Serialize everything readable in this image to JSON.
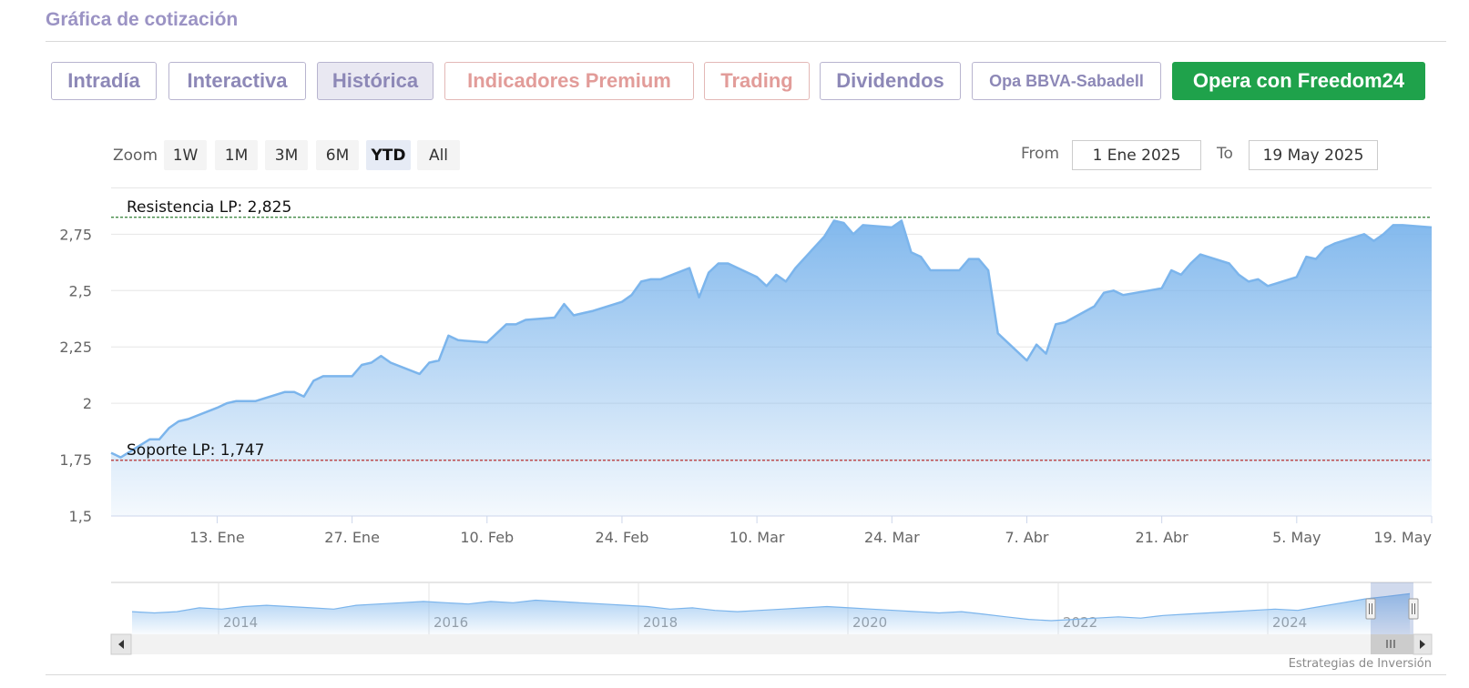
{
  "section_title": "Gráfica de cotización",
  "tabs": [
    {
      "label": "Intradía",
      "style": "normal"
    },
    {
      "label": "Interactiva",
      "style": "normal"
    },
    {
      "label": "Histórica",
      "style": "active"
    },
    {
      "label": "Indicadores Premium",
      "style": "red"
    },
    {
      "label": "Trading",
      "style": "red"
    },
    {
      "label": "Dividendos",
      "style": "normal"
    },
    {
      "label": "Opa BBVA-Sabadell",
      "style": "small"
    },
    {
      "label": "Opera con Freedom24",
      "style": "green"
    }
  ],
  "zoom": {
    "label": "Zoom",
    "buttons": [
      "1W",
      "1M",
      "3M",
      "6M",
      "YTD",
      "All"
    ],
    "selected": "YTD"
  },
  "range": {
    "from_label": "From",
    "from_value": "1 Ene 2025",
    "to_label": "To",
    "to_value": "19 May 2025"
  },
  "credit": "Estrategias de Inversión",
  "colors": {
    "line": "#7cb5ec",
    "fill_top": "#7cb5ec",
    "resistance": "#2e7d32",
    "support": "#b71c1c",
    "green_button": "#1fa24b",
    "tab_text": "#8d88b7",
    "tab_text_red": "#e29c99"
  },
  "chart_data": {
    "type": "area",
    "title": "",
    "xlabel": "",
    "ylabel": "",
    "x_ticks": [
      "13. Ene",
      "27. Ene",
      "10. Feb",
      "24. Feb",
      "10. Mar",
      "24. Mar",
      "7. Abr",
      "21. Abr",
      "5. May",
      "19. May"
    ],
    "y_ticks": [
      "1,5",
      "1,75",
      "2",
      "2,25",
      "2,5",
      "2,75"
    ],
    "y_tick_values": [
      1.5,
      1.75,
      2,
      2.25,
      2.5,
      2.75
    ],
    "ylim": [
      1.5,
      2.82
    ],
    "xlim": [
      "2025-01-02",
      "2025-05-19"
    ],
    "grid": true,
    "legend": "none",
    "reference_lines": [
      {
        "label": "Resistencia LP: 2,825",
        "value": 2.825,
        "style": "dashed"
      },
      {
        "label": "Soporte LP: 1,747",
        "value": 1.747,
        "style": "dashed"
      }
    ],
    "series": [
      {
        "x": [
          "2025-01-02",
          "2025-01-03",
          "2025-01-06",
          "2025-01-07",
          "2025-01-08",
          "2025-01-09",
          "2025-01-10",
          "2025-01-13",
          "2025-01-14",
          "2025-01-15",
          "2025-01-16",
          "2025-01-17",
          "2025-01-20",
          "2025-01-21",
          "2025-01-22",
          "2025-01-23",
          "2025-01-24",
          "2025-01-27",
          "2025-01-28",
          "2025-01-29",
          "2025-01-30",
          "2025-01-31",
          "2025-02-03",
          "2025-02-04",
          "2025-02-05",
          "2025-02-06",
          "2025-02-07",
          "2025-02-10",
          "2025-02-11",
          "2025-02-12",
          "2025-02-13",
          "2025-02-14",
          "2025-02-17",
          "2025-02-18",
          "2025-02-19",
          "2025-02-20",
          "2025-02-21",
          "2025-02-24",
          "2025-02-25",
          "2025-02-26",
          "2025-02-27",
          "2025-02-28",
          "2025-03-03",
          "2025-03-04",
          "2025-03-05",
          "2025-03-06",
          "2025-03-07",
          "2025-03-10",
          "2025-03-11",
          "2025-03-12",
          "2025-03-13",
          "2025-03-14",
          "2025-03-17",
          "2025-03-18",
          "2025-03-19",
          "2025-03-20",
          "2025-03-21",
          "2025-03-24",
          "2025-03-25",
          "2025-03-26",
          "2025-03-27",
          "2025-03-28",
          "2025-03-31",
          "2025-04-01",
          "2025-04-02",
          "2025-04-03",
          "2025-04-04",
          "2025-04-07",
          "2025-04-08",
          "2025-04-09",
          "2025-04-10",
          "2025-04-11",
          "2025-04-14",
          "2025-04-15",
          "2025-04-16",
          "2025-04-17",
          "2025-04-21",
          "2025-04-22",
          "2025-04-23",
          "2025-04-24",
          "2025-04-25",
          "2025-04-28",
          "2025-04-29",
          "2025-04-30",
          "2025-05-01",
          "2025-05-02",
          "2025-05-05",
          "2025-05-06",
          "2025-05-07",
          "2025-05-08",
          "2025-05-09",
          "2025-05-12",
          "2025-05-13",
          "2025-05-14",
          "2025-05-15",
          "2025-05-16",
          "2025-05-19"
        ],
        "values": [
          1.78,
          1.76,
          1.84,
          1.84,
          1.89,
          1.92,
          1.93,
          1.98,
          2.0,
          2.01,
          2.01,
          2.01,
          2.05,
          2.05,
          2.03,
          2.1,
          2.12,
          2.12,
          2.17,
          2.18,
          2.21,
          2.18,
          2.13,
          2.18,
          2.19,
          2.3,
          2.28,
          2.27,
          2.31,
          2.35,
          2.35,
          2.37,
          2.38,
          2.44,
          2.39,
          2.4,
          2.41,
          2.45,
          2.48,
          2.54,
          2.55,
          2.55,
          2.6,
          2.47,
          2.58,
          2.62,
          2.62,
          2.56,
          2.52,
          2.57,
          2.54,
          2.6,
          2.74,
          2.81,
          2.8,
          2.75,
          2.79,
          2.78,
          2.81,
          2.67,
          2.65,
          2.59,
          2.59,
          2.64,
          2.64,
          2.59,
          2.31,
          2.19,
          2.26,
          2.22,
          2.35,
          2.36,
          2.43,
          2.49,
          2.5,
          2.48,
          2.51,
          2.59,
          2.57,
          2.62,
          2.66,
          2.62,
          2.57,
          2.54,
          2.55,
          2.52,
          2.56,
          2.65,
          2.64,
          2.69,
          2.71,
          2.75,
          2.72,
          2.75,
          2.79,
          2.79,
          2.78
        ]
      }
    ],
    "navigator": {
      "x_ticks": [
        "2014",
        "2016",
        "2018",
        "2020",
        "2022",
        "2024"
      ],
      "series": [
        2.2,
        2.15,
        2.2,
        2.35,
        2.3,
        2.4,
        2.45,
        2.4,
        2.35,
        2.3,
        2.45,
        2.5,
        2.55,
        2.6,
        2.55,
        2.5,
        2.6,
        2.55,
        2.65,
        2.6,
        2.55,
        2.5,
        2.45,
        2.4,
        2.3,
        2.35,
        2.25,
        2.2,
        2.25,
        2.3,
        2.35,
        2.4,
        2.35,
        2.3,
        2.25,
        2.2,
        2.15,
        2.2,
        2.1,
        2.0,
        1.9,
        1.85,
        1.9,
        1.95,
        2.0,
        1.95,
        2.05,
        2.1,
        2.15,
        2.2,
        2.25,
        2.3,
        2.25,
        2.4,
        2.55,
        2.7,
        2.8,
        2.9
      ],
      "selection": [
        "2025-01-02",
        "2025-05-19"
      ]
    }
  }
}
